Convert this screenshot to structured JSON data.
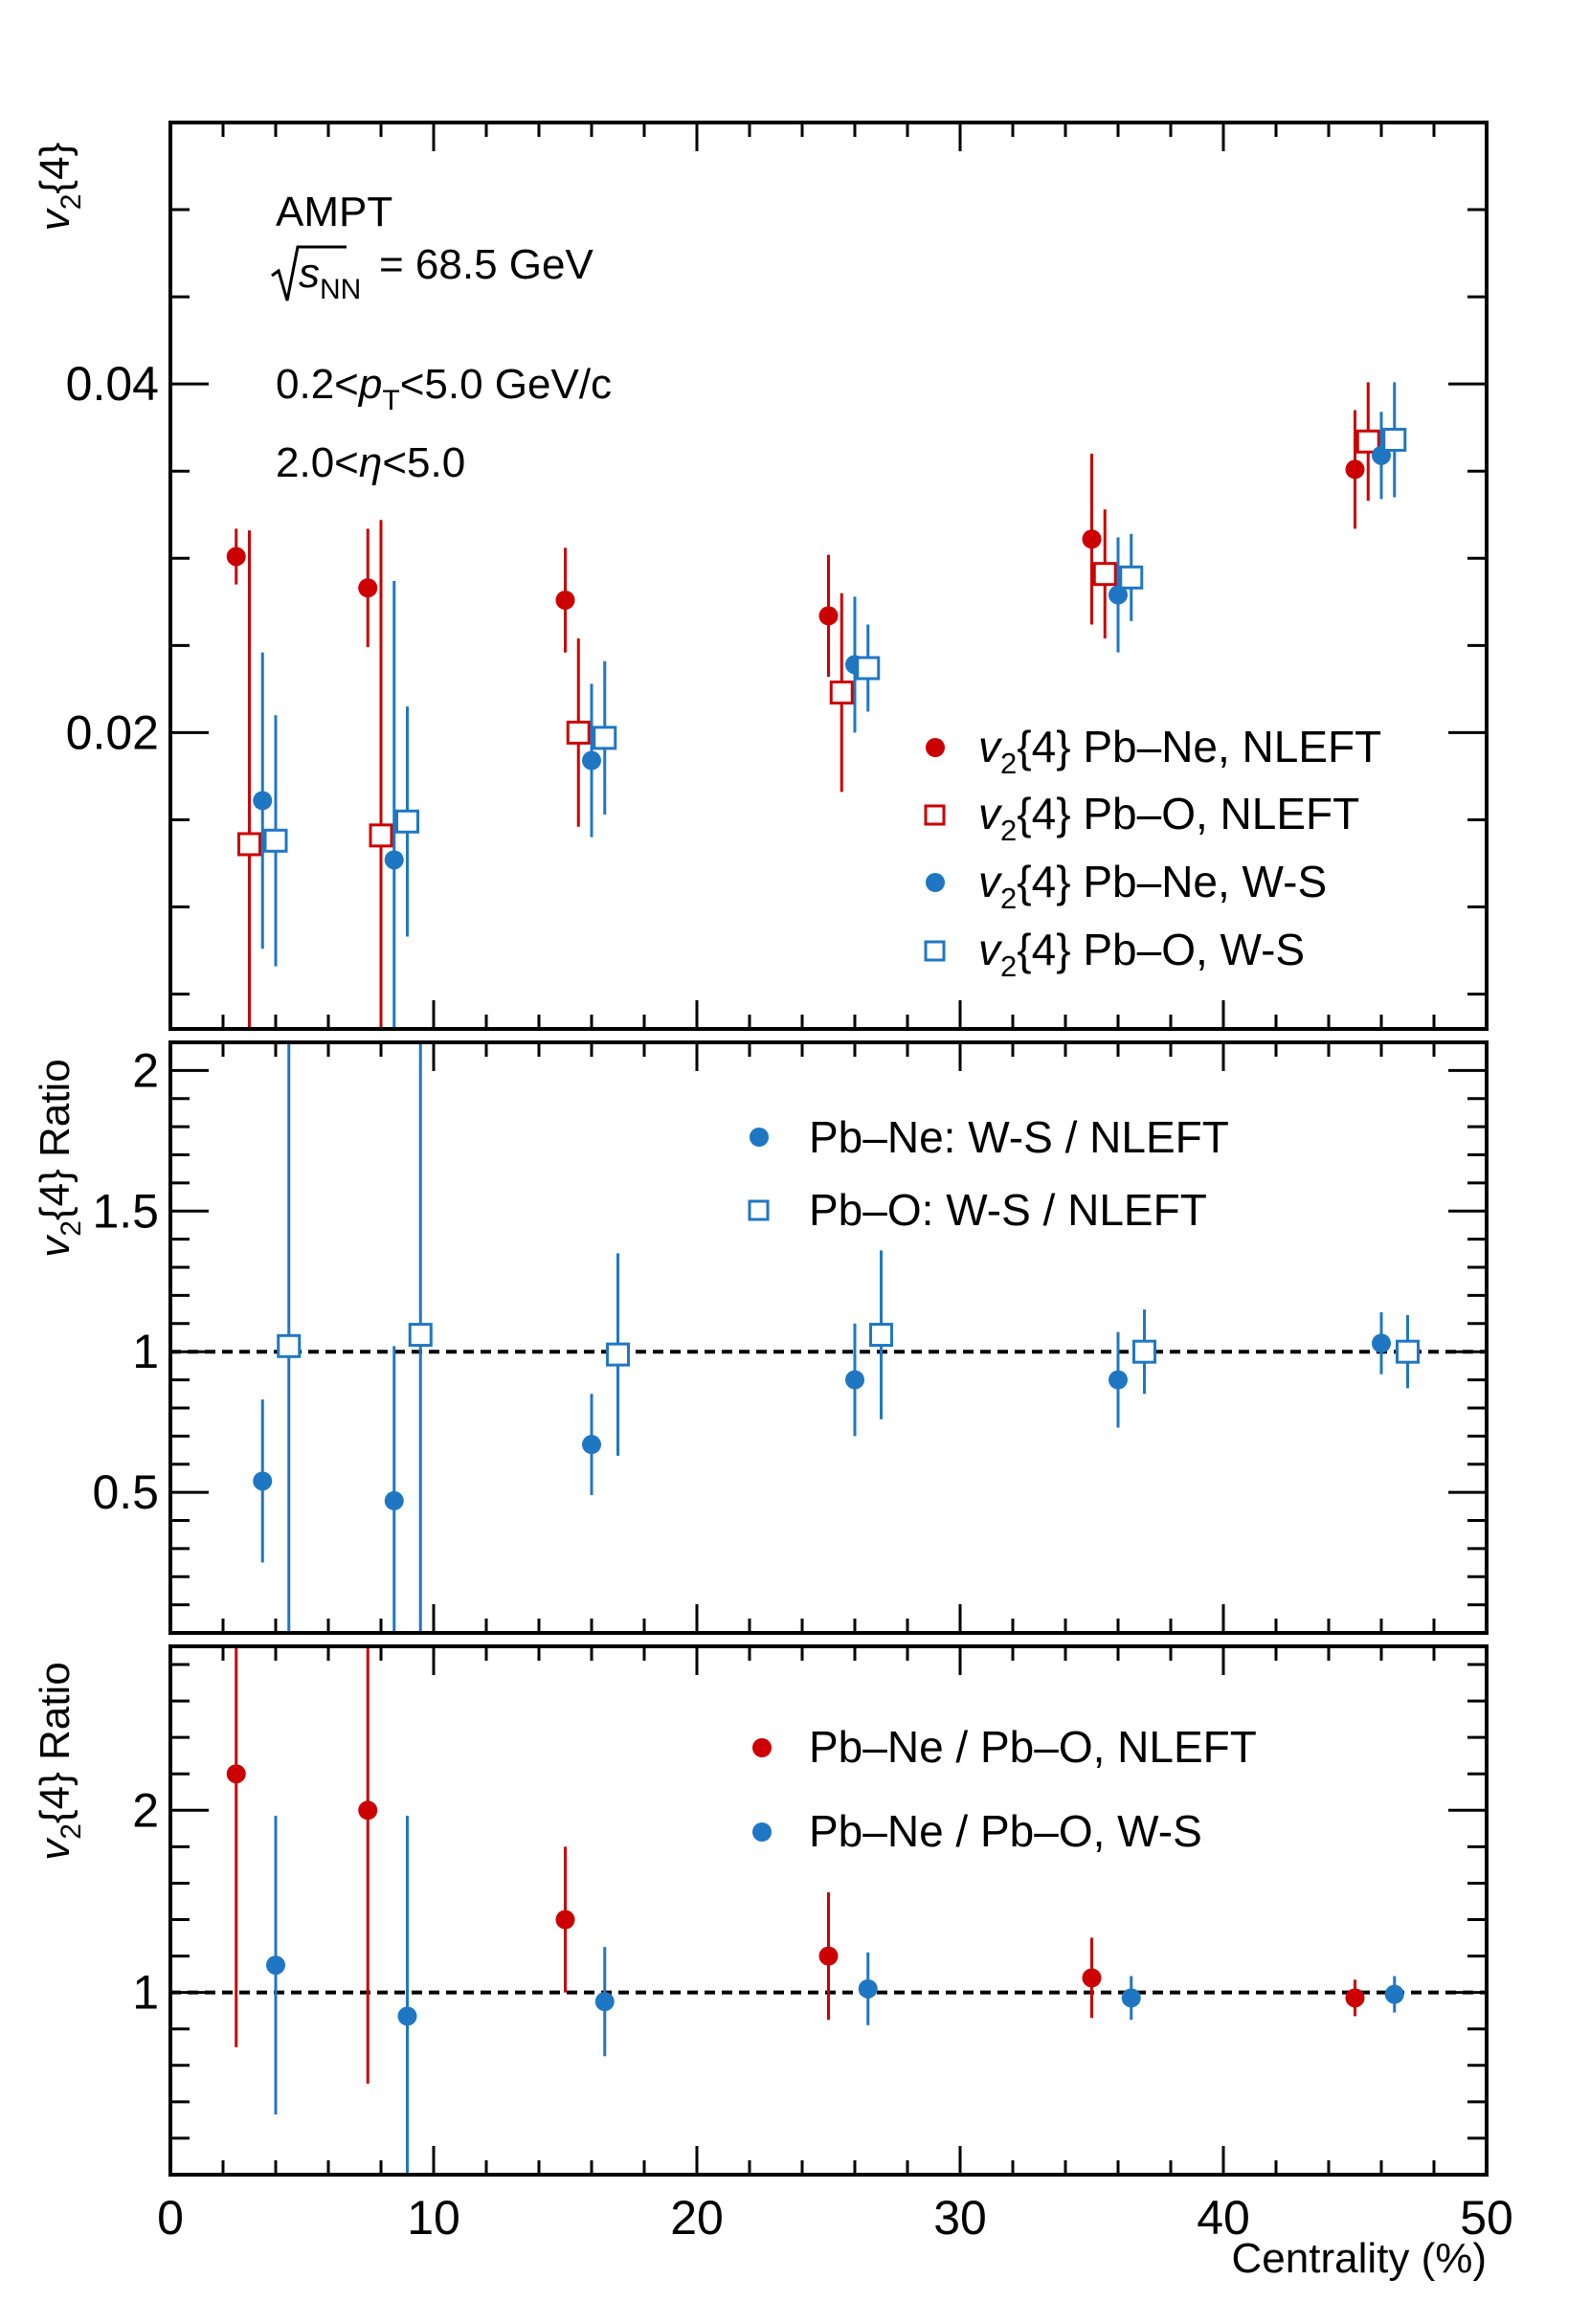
{
  "colors": {
    "red": "#cc0000",
    "blue": "#1f77c4",
    "frame": "#000000"
  },
  "chart_data": [
    {
      "type": "scatter",
      "panel": "top",
      "ylabel": "v2{4}",
      "ylim": [
        0.003,
        0.055
      ],
      "yticks": [
        {
          "v": 0.02,
          "label": "0.02"
        },
        {
          "v": 0.04,
          "label": "0.04"
        }
      ],
      "annotations": {
        "model": "AMPT",
        "energy_value": "= 68.5 GeV",
        "pt_range": "0.2<pT<5.0 GeV/c",
        "eta_range": "2.0<η<5.0"
      },
      "series": [
        {
          "name": "v2{4} Pb–Ne, NLEFT",
          "marker": "filled",
          "color": "red",
          "points": [
            [
              2.5,
              0.0301,
              0.0016
            ],
            [
              7.5,
              0.0283,
              0.0034
            ],
            [
              15,
              0.0276,
              0.003
            ],
            [
              25,
              0.0267,
              0.0035
            ],
            [
              35,
              0.0311,
              0.0049
            ],
            [
              45,
              0.0351,
              0.0034
            ]
          ]
        },
        {
          "name": "v2{4} Pb–O, NLEFT",
          "marker": "open",
          "color": "red",
          "points": [
            [
              3.0,
              0.0136,
              0.018
            ],
            [
              8.0,
              0.0141,
              0.0181
            ],
            [
              15.5,
              0.02,
              0.0054
            ],
            [
              25.5,
              0.0223,
              0.0057
            ],
            [
              35.5,
              0.0291,
              0.0037
            ],
            [
              45.5,
              0.0367,
              0.0034
            ]
          ]
        },
        {
          "name": "v2{4} Pb–Ne, W-S",
          "marker": "filled",
          "color": "blue",
          "points": [
            [
              3.5,
              0.0161,
              0.0085
            ],
            [
              8.5,
              0.0127,
              0.016
            ],
            [
              16,
              0.0184,
              0.0044
            ],
            [
              26,
              0.0239,
              0.0039
            ],
            [
              36,
              0.0279,
              0.0033
            ],
            [
              46,
              0.0359,
              0.0025
            ]
          ]
        },
        {
          "name": "v2{4} Pb–O, W-S",
          "marker": "open",
          "color": "blue",
          "points": [
            [
              4.0,
              0.0138,
              0.0072
            ],
            [
              9.0,
              0.0149,
              0.0066
            ],
            [
              16.5,
              0.0197,
              0.0044
            ],
            [
              26.5,
              0.0237,
              0.0025
            ],
            [
              36.5,
              0.0289,
              0.0025
            ],
            [
              46.5,
              0.0368,
              0.0033
            ]
          ]
        }
      ]
    },
    {
      "type": "scatter",
      "panel": "middle",
      "ylabel": "v2{4} Ratio",
      "ylim": [
        0.0,
        2.1
      ],
      "reference_line": 1,
      "yticks": [
        {
          "v": 0.5,
          "label": "0.5"
        },
        {
          "v": 1,
          "label": "1"
        },
        {
          "v": 1.5,
          "label": "1.5"
        },
        {
          "v": 2,
          "label": "2"
        }
      ],
      "series": [
        {
          "name": "Pb–Ne: W-S / NLEFT",
          "marker": "filled",
          "color": "blue",
          "points": [
            [
              3.5,
              0.54,
              0.29
            ],
            [
              8.5,
              0.47,
              0.55
            ],
            [
              16,
              0.67,
              0.18
            ],
            [
              26,
              0.9,
              0.2
            ],
            [
              36,
              0.9,
              0.17
            ],
            [
              46,
              1.03,
              0.11
            ]
          ]
        },
        {
          "name": "Pb–O: W-S / NLEFT",
          "marker": "open",
          "color": "blue",
          "points": [
            [
              4.5,
              1.02,
              1.1
            ],
            [
              9.5,
              1.06,
              1.1
            ],
            [
              17,
              0.99,
              0.36
            ],
            [
              27,
              1.06,
              0.3
            ],
            [
              37,
              1.0,
              0.15
            ],
            [
              47,
              1.0,
              0.13
            ]
          ]
        }
      ]
    },
    {
      "type": "scatter",
      "panel": "bottom",
      "ylabel": "v2{4} Ratio",
      "ylim": [
        0.0,
        2.9
      ],
      "reference_line": 1,
      "xlabel": "Centrality (%)",
      "xlim": [
        0,
        50
      ],
      "xticks": [
        0,
        10,
        20,
        30,
        40,
        50
      ],
      "yticks": [
        {
          "v": 1,
          "label": "1"
        },
        {
          "v": 2,
          "label": "2"
        }
      ],
      "series": [
        {
          "name": "Pb–Ne / Pb–O, NLEFT",
          "marker": "filled",
          "color": "red",
          "points": [
            [
              2.5,
              2.2,
              1.5
            ],
            [
              7.5,
              2.0,
              1.5
            ],
            [
              15,
              1.4,
              0.4
            ],
            [
              25,
              1.2,
              0.35
            ],
            [
              35,
              1.08,
              0.22
            ],
            [
              45,
              0.97,
              0.1
            ]
          ]
        },
        {
          "name": "Pb–Ne / Pb–O, W-S",
          "marker": "filled",
          "color": "blue",
          "points": [
            [
              4,
              1.15,
              0.82
            ],
            [
              9,
              0.87,
              1.1
            ],
            [
              16.5,
              0.95,
              0.3
            ],
            [
              26.5,
              1.02,
              0.2
            ],
            [
              36.5,
              0.97,
              0.12
            ],
            [
              46.5,
              0.99,
              0.1
            ]
          ]
        }
      ]
    }
  ]
}
